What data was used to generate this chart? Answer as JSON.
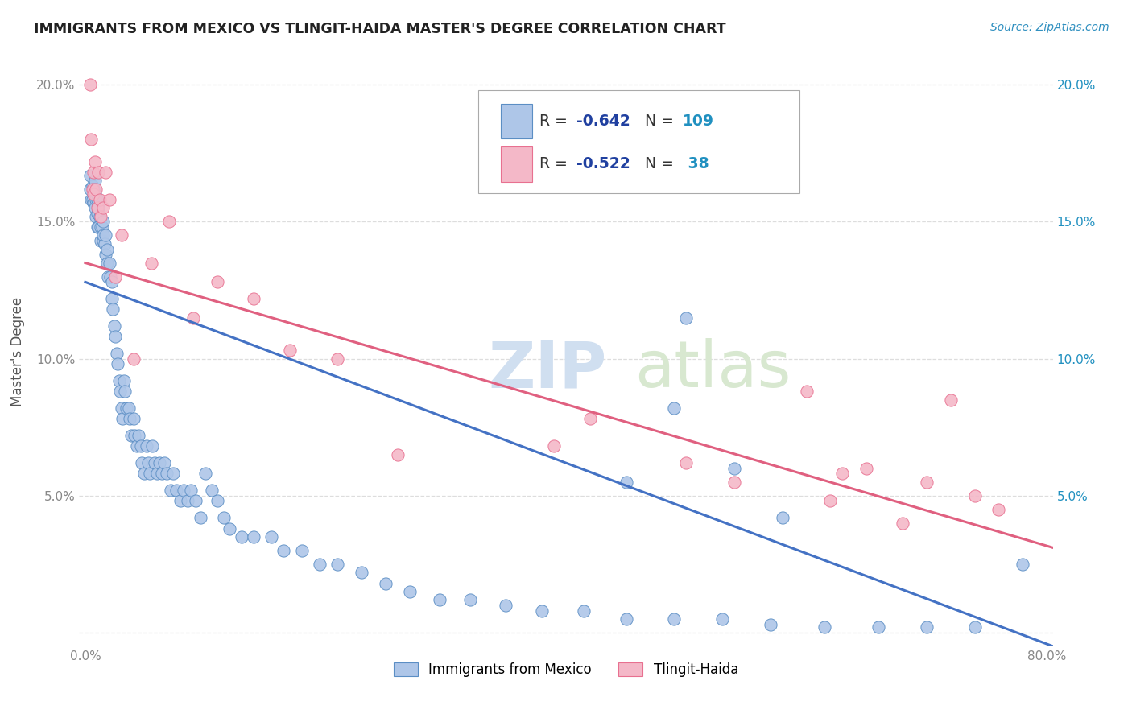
{
  "title": "IMMIGRANTS FROM MEXICO VS TLINGIT-HAIDA MASTER'S DEGREE CORRELATION CHART",
  "source_text": "Source: ZipAtlas.com",
  "xlabel_blue": "Immigrants from Mexico",
  "xlabel_pink": "Tlingit-Haida",
  "ylabel": "Master's Degree",
  "xlim": [
    -0.005,
    0.805
  ],
  "ylim": [
    -0.005,
    0.21
  ],
  "xticks": [
    0.0,
    0.8
  ],
  "xticklabels": [
    "0.0%",
    "80.0%"
  ],
  "yticks": [
    0.0,
    0.05,
    0.1,
    0.15,
    0.2
  ],
  "yticklabels_left": [
    "",
    "5.0%",
    "10.0%",
    "15.0%",
    "20.0%"
  ],
  "yticklabels_right": [
    "",
    "5.0%",
    "10.0%",
    "15.0%",
    "20.0%"
  ],
  "blue_R": -0.642,
  "blue_N": 109,
  "pink_R": -0.522,
  "pink_N": 38,
  "blue_color": "#aec6e8",
  "pink_color": "#f4b8c8",
  "blue_edge_color": "#5b8ec4",
  "pink_edge_color": "#e87090",
  "blue_line_color": "#4472c4",
  "pink_line_color": "#e06080",
  "watermark_zip": "ZIP",
  "watermark_atlas": "atlas",
  "watermark_color": "#d0dff0",
  "legend_label_color": "#333333",
  "legend_R_color": "#2040a0",
  "legend_N_color": "#2090c0",
  "bg_color": "#ffffff",
  "grid_color": "#dddddd",
  "tick_color": "#888888",
  "blue_trend_x0": 0.0,
  "blue_trend_y0": 0.128,
  "blue_trend_x1": 0.805,
  "blue_trend_y1": -0.005,
  "pink_trend_x0": 0.0,
  "pink_trend_y0": 0.135,
  "pink_trend_x1": 0.805,
  "pink_trend_y1": 0.031,
  "blue_scatter_x": [
    0.004,
    0.004,
    0.005,
    0.006,
    0.006,
    0.007,
    0.007,
    0.008,
    0.008,
    0.008,
    0.009,
    0.009,
    0.01,
    0.01,
    0.01,
    0.011,
    0.011,
    0.012,
    0.013,
    0.013,
    0.014,
    0.015,
    0.015,
    0.015,
    0.016,
    0.017,
    0.017,
    0.018,
    0.018,
    0.019,
    0.02,
    0.021,
    0.022,
    0.022,
    0.023,
    0.024,
    0.025,
    0.026,
    0.027,
    0.028,
    0.029,
    0.03,
    0.031,
    0.032,
    0.033,
    0.034,
    0.036,
    0.037,
    0.038,
    0.04,
    0.041,
    0.043,
    0.044,
    0.046,
    0.047,
    0.049,
    0.051,
    0.052,
    0.054,
    0.056,
    0.058,
    0.06,
    0.062,
    0.064,
    0.066,
    0.068,
    0.071,
    0.073,
    0.076,
    0.079,
    0.082,
    0.085,
    0.088,
    0.092,
    0.096,
    0.1,
    0.105,
    0.11,
    0.115,
    0.12,
    0.13,
    0.14,
    0.155,
    0.165,
    0.18,
    0.195,
    0.21,
    0.23,
    0.25,
    0.27,
    0.295,
    0.32,
    0.35,
    0.38,
    0.415,
    0.45,
    0.49,
    0.53,
    0.57,
    0.615,
    0.66,
    0.7,
    0.74,
    0.78,
    0.54,
    0.58,
    0.49,
    0.45,
    0.5
  ],
  "blue_scatter_y": [
    0.167,
    0.162,
    0.158,
    0.163,
    0.158,
    0.162,
    0.157,
    0.165,
    0.16,
    0.155,
    0.158,
    0.152,
    0.158,
    0.153,
    0.148,
    0.155,
    0.148,
    0.152,
    0.148,
    0.143,
    0.148,
    0.143,
    0.15,
    0.145,
    0.142,
    0.138,
    0.145,
    0.14,
    0.135,
    0.13,
    0.135,
    0.13,
    0.128,
    0.122,
    0.118,
    0.112,
    0.108,
    0.102,
    0.098,
    0.092,
    0.088,
    0.082,
    0.078,
    0.092,
    0.088,
    0.082,
    0.082,
    0.078,
    0.072,
    0.078,
    0.072,
    0.068,
    0.072,
    0.068,
    0.062,
    0.058,
    0.068,
    0.062,
    0.058,
    0.068,
    0.062,
    0.058,
    0.062,
    0.058,
    0.062,
    0.058,
    0.052,
    0.058,
    0.052,
    0.048,
    0.052,
    0.048,
    0.052,
    0.048,
    0.042,
    0.058,
    0.052,
    0.048,
    0.042,
    0.038,
    0.035,
    0.035,
    0.035,
    0.03,
    0.03,
    0.025,
    0.025,
    0.022,
    0.018,
    0.015,
    0.012,
    0.012,
    0.01,
    0.008,
    0.008,
    0.005,
    0.005,
    0.005,
    0.003,
    0.002,
    0.002,
    0.002,
    0.002,
    0.025,
    0.06,
    0.042,
    0.082,
    0.055,
    0.115
  ],
  "pink_scatter_x": [
    0.004,
    0.005,
    0.006,
    0.007,
    0.007,
    0.008,
    0.009,
    0.01,
    0.011,
    0.012,
    0.013,
    0.015,
    0.017,
    0.02,
    0.025,
    0.03,
    0.04,
    0.055,
    0.07,
    0.09,
    0.11,
    0.14,
    0.17,
    0.21,
    0.26,
    0.42,
    0.54,
    0.6,
    0.63,
    0.65,
    0.7,
    0.72,
    0.74,
    0.76,
    0.39,
    0.5,
    0.62,
    0.68
  ],
  "pink_scatter_y": [
    0.2,
    0.18,
    0.162,
    0.16,
    0.168,
    0.172,
    0.162,
    0.155,
    0.168,
    0.158,
    0.152,
    0.155,
    0.168,
    0.158,
    0.13,
    0.145,
    0.1,
    0.135,
    0.15,
    0.115,
    0.128,
    0.122,
    0.103,
    0.1,
    0.065,
    0.078,
    0.055,
    0.088,
    0.058,
    0.06,
    0.055,
    0.085,
    0.05,
    0.045,
    0.068,
    0.062,
    0.048,
    0.04
  ]
}
